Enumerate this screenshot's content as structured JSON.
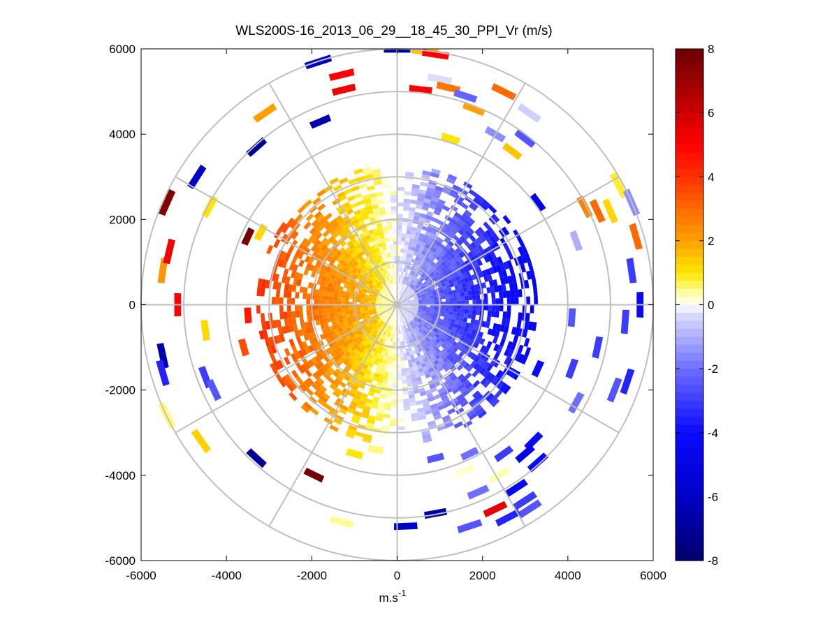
{
  "chart_data": {
    "type": "polar-ppi-scan",
    "title": "WLS200S-16_2013_06_29__18_45_30_PPI_Vr (m/s)",
    "xlabel": "m.s",
    "xlabel_superscript": "-1",
    "ylabel": "",
    "xlim": [
      -6000,
      6000
    ],
    "ylim": [
      -6000,
      6000
    ],
    "x_ticks": [
      "-6000",
      "-4000",
      "-2000",
      "0",
      "2000",
      "4000",
      "6000"
    ],
    "y_ticks": [
      "6000",
      "4000",
      "2000",
      "0",
      "-2000",
      "-4000",
      "-6000"
    ],
    "x_tick_values": [
      -6000,
      -4000,
      -2000,
      0,
      2000,
      4000,
      6000
    ],
    "y_tick_values": [
      6000,
      4000,
      2000,
      0,
      -2000,
      -4000,
      -6000
    ],
    "grid_rings_m": [
      1000,
      2000,
      3000,
      4000,
      5000,
      6000
    ],
    "grid_spokes_deg": [
      0,
      30,
      60,
      90,
      120,
      150,
      180,
      210,
      240,
      270,
      300,
      330
    ],
    "max_range_m": 6000,
    "dense_region": {
      "approaching_half": "west (x < 0), positive Vr 0..+4 m/s",
      "receding_half": "east (x > 0), negative Vr 0..-5 m/s",
      "dense_radius_m": 3300
    },
    "colorbar": {
      "min": -8,
      "max": 8,
      "ticks": [
        8,
        6,
        4,
        2,
        0,
        -2,
        -4,
        -6,
        -8
      ],
      "tick_labels": [
        "8",
        "6",
        "4",
        "2",
        "0",
        "-2",
        "-4",
        "-6",
        "-8"
      ],
      "colormap": [
        {
          "v": -8,
          "c": "#00006a"
        },
        {
          "v": -6,
          "c": "#0000c8"
        },
        {
          "v": -4,
          "c": "#0a0aff"
        },
        {
          "v": -2,
          "c": "#6e6eff"
        },
        {
          "v": -0.3,
          "c": "#dcdcff"
        },
        {
          "v": 0,
          "c": "#ffffff"
        },
        {
          "v": 0.3,
          "c": "#ffffb4"
        },
        {
          "v": 1,
          "c": "#ffe600"
        },
        {
          "v": 2,
          "c": "#ffa000"
        },
        {
          "v": 3,
          "c": "#ff6a00"
        },
        {
          "v": 4,
          "c": "#ff3000"
        },
        {
          "v": 5,
          "c": "#ff0000"
        },
        {
          "v": 6,
          "c": "#cc0000"
        },
        {
          "v": 8,
          "c": "#6a0000"
        }
      ]
    },
    "sparse_returns": [
      {
        "x": -5150,
        "y": 0,
        "v": 5.0
      },
      {
        "x": -5500,
        "y": 800,
        "v": 2.2
      },
      {
        "x": -5350,
        "y": 1250,
        "v": 5.2
      },
      {
        "x": -5400,
        "y": 2400,
        "v": 7.5
      },
      {
        "x": -4700,
        "y": 3000,
        "v": -6.0
      },
      {
        "x": -4400,
        "y": 2300,
        "v": 1.0
      },
      {
        "x": -3300,
        "y": 3700,
        "v": -7.0
      },
      {
        "x": -3100,
        "y": 4500,
        "v": 2.0
      },
      {
        "x": -1800,
        "y": 4300,
        "v": -6.5
      },
      {
        "x": -1850,
        "y": 5700,
        "v": -6.2
      },
      {
        "x": -1300,
        "y": 5400,
        "v": 5.0
      },
      {
        "x": -1250,
        "y": 5050,
        "v": 5.3
      },
      {
        "x": -3500,
        "y": 1600,
        "v": 7.8
      },
      {
        "x": -3200,
        "y": 1700,
        "v": 1.2
      },
      {
        "x": -3500,
        "y": -250,
        "v": 4.5
      },
      {
        "x": -3600,
        "y": -1000,
        "v": 3.5
      },
      {
        "x": -4500,
        "y": -600,
        "v": 1.2
      },
      {
        "x": -5500,
        "y": -1200,
        "v": -6.5
      },
      {
        "x": -5500,
        "y": -1600,
        "v": -3.5
      },
      {
        "x": -5400,
        "y": -2600,
        "v": 0.5
      },
      {
        "x": -4500,
        "y": -1700,
        "v": -3.0
      },
      {
        "x": -4300,
        "y": -2000,
        "v": -2.5
      },
      {
        "x": -4600,
        "y": -3200,
        "v": 1.3
      },
      {
        "x": -3300,
        "y": -3600,
        "v": -7.0
      },
      {
        "x": -1950,
        "y": -4000,
        "v": 7.8
      },
      {
        "x": -1300,
        "y": -5100,
        "v": 0.4
      },
      {
        "x": 0,
        "y": 6000,
        "v": -7.0
      },
      {
        "x": 650,
        "y": 5950,
        "v": 1.5
      },
      {
        "x": 900,
        "y": 5880,
        "v": 5.0
      },
      {
        "x": 1000,
        "y": 5300,
        "v": -0.3
      },
      {
        "x": 550,
        "y": 5050,
        "v": 5.0
      },
      {
        "x": 1200,
        "y": 5100,
        "v": 2.8
      },
      {
        "x": 1600,
        "y": 4900,
        "v": -2.2
      },
      {
        "x": 1800,
        "y": 4600,
        "v": 2.0
      },
      {
        "x": 2500,
        "y": 5000,
        "v": 3.0
      },
      {
        "x": 3100,
        "y": 4500,
        "v": -0.5
      },
      {
        "x": 1250,
        "y": 3900,
        "v": 1.0
      },
      {
        "x": 2300,
        "y": 4000,
        "v": -1.5
      },
      {
        "x": 3000,
        "y": 3900,
        "v": -2.5
      },
      {
        "x": 2700,
        "y": 3600,
        "v": 1.5
      },
      {
        "x": 3300,
        "y": 2400,
        "v": -5.0
      },
      {
        "x": 4400,
        "y": 2300,
        "v": 2.5
      },
      {
        "x": 4700,
        "y": 2200,
        "v": 3.0
      },
      {
        "x": 5000,
        "y": 2200,
        "v": 1.2
      },
      {
        "x": 5200,
        "y": 2800,
        "v": 0.8
      },
      {
        "x": 5500,
        "y": 2400,
        "v": -1.5
      },
      {
        "x": 5600,
        "y": 1600,
        "v": 3.0
      },
      {
        "x": 4200,
        "y": 1500,
        "v": -1.0
      },
      {
        "x": 5500,
        "y": 800,
        "v": -3.0
      },
      {
        "x": 5700,
        "y": 0,
        "v": -4.5
      },
      {
        "x": 5350,
        "y": -400,
        "v": -3.0
      },
      {
        "x": 4100,
        "y": -300,
        "v": -2.5
      },
      {
        "x": 4700,
        "y": -1000,
        "v": -3.0
      },
      {
        "x": 5400,
        "y": -1800,
        "v": -3.5
      },
      {
        "x": 5100,
        "y": -2000,
        "v": -2.5
      },
      {
        "x": 4100,
        "y": -1500,
        "v": -3.0
      },
      {
        "x": 4200,
        "y": -2300,
        "v": -2.0
      },
      {
        "x": 3300,
        "y": -1500,
        "v": -4.0
      },
      {
        "x": 3200,
        "y": -3200,
        "v": -4.0
      },
      {
        "x": 3000,
        "y": -3500,
        "v": -5.0
      },
      {
        "x": 3300,
        "y": -3700,
        "v": -4.5
      },
      {
        "x": 2500,
        "y": -3500,
        "v": -3.0
      },
      {
        "x": 2400,
        "y": -4000,
        "v": 0.3
      },
      {
        "x": 2800,
        "y": -4300,
        "v": -4.5
      },
      {
        "x": 3000,
        "y": -4600,
        "v": -3.0
      },
      {
        "x": 3100,
        "y": -4800,
        "v": -2.5
      },
      {
        "x": 2600,
        "y": -5000,
        "v": -3.5
      },
      {
        "x": 2300,
        "y": -4800,
        "v": 5.5
      },
      {
        "x": 1600,
        "y": -3900,
        "v": 0.2
      },
      {
        "x": 1900,
        "y": -4400,
        "v": -2.0
      },
      {
        "x": 1700,
        "y": -5200,
        "v": -2.5
      },
      {
        "x": 1700,
        "y": -3500,
        "v": -2.0
      },
      {
        "x": 900,
        "y": -4900,
        "v": -6.8
      },
      {
        "x": 200,
        "y": -5200,
        "v": -6.0
      },
      {
        "x": 900,
        "y": -3600,
        "v": -2.5
      },
      {
        "x": -500,
        "y": -3400,
        "v": 0.5
      },
      {
        "x": -1000,
        "y": -3500,
        "v": 1.0
      }
    ]
  }
}
